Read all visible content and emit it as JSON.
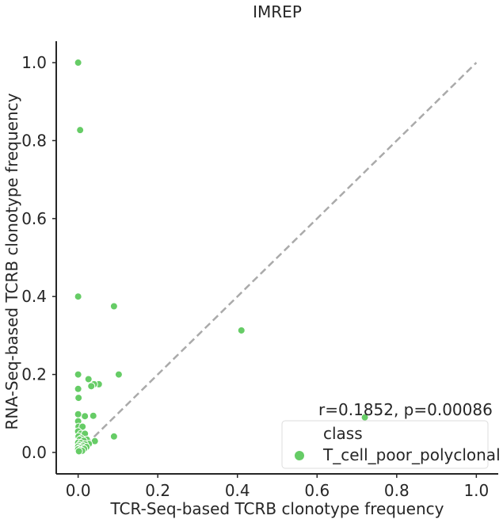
{
  "chart_data": {
    "type": "scatter",
    "title": "IMREP",
    "xlabel": "TCR-Seq-based TCRB clonotype frequency",
    "ylabel": "RNA-Seq-based TCRB clonotype frequency",
    "xlim": [
      -0.055,
      1.055
    ],
    "ylim": [
      -0.055,
      1.055
    ],
    "xticks": [
      0.0,
      0.2,
      0.4,
      0.6,
      0.8,
      1.0
    ],
    "yticks": [
      0.0,
      0.2,
      0.4,
      0.6,
      0.8,
      1.0
    ],
    "xtick_labels": [
      "0.0",
      "0.2",
      "0.4",
      "0.6",
      "0.8",
      "1.0"
    ],
    "ytick_labels": [
      "0.0",
      "0.2",
      "0.4",
      "0.6",
      "0.8",
      "1.0"
    ],
    "grid": false,
    "annotation": "r=0.1852, p=0.00086",
    "reference_line": {
      "style": "dashed",
      "from": [
        0,
        0
      ],
      "to": [
        1,
        1
      ],
      "color": "#aaaaaa"
    },
    "legend": {
      "title": "class",
      "placement": "bottom-right"
    },
    "series": [
      {
        "name": "T_cell_poor_polyclonal",
        "color": "#66cc66",
        "points": [
          [
            0.0,
            1.0
          ],
          [
            0.005,
            0.827
          ],
          [
            0.0,
            0.4
          ],
          [
            0.09,
            0.375
          ],
          [
            0.41,
            0.313
          ],
          [
            0.0,
            0.2
          ],
          [
            0.102,
            0.2
          ],
          [
            0.026,
            0.188
          ],
          [
            0.052,
            0.175
          ],
          [
            0.04,
            0.175
          ],
          [
            0.033,
            0.17
          ],
          [
            0.0,
            0.163
          ],
          [
            0.001,
            0.14
          ],
          [
            0.0,
            0.098
          ],
          [
            0.017,
            0.093
          ],
          [
            0.038,
            0.094
          ],
          [
            0.72,
            0.09
          ],
          [
            0.0,
            0.08
          ],
          [
            0.001,
            0.066
          ],
          [
            0.011,
            0.066
          ],
          [
            0.0,
            0.054
          ],
          [
            0.007,
            0.048
          ],
          [
            0.017,
            0.048
          ],
          [
            0.09,
            0.041
          ],
          [
            0.001,
            0.041
          ],
          [
            0.008,
            0.036
          ],
          [
            0.004,
            0.033
          ],
          [
            0.022,
            0.033
          ],
          [
            0.014,
            0.03
          ],
          [
            0.042,
            0.029
          ],
          [
            0.0,
            0.025
          ],
          [
            0.007,
            0.024
          ],
          [
            0.027,
            0.022
          ],
          [
            0.017,
            0.021
          ],
          [
            0.003,
            0.019
          ],
          [
            0.012,
            0.017
          ],
          [
            0.0,
            0.015
          ],
          [
            0.021,
            0.014
          ],
          [
            0.008,
            0.013
          ],
          [
            0.003,
            0.011
          ],
          [
            0.015,
            0.009
          ],
          [
            0.0,
            0.008
          ],
          [
            0.006,
            0.006
          ],
          [
            0.01,
            0.004
          ],
          [
            0.002,
            0.003
          ]
        ]
      }
    ]
  }
}
